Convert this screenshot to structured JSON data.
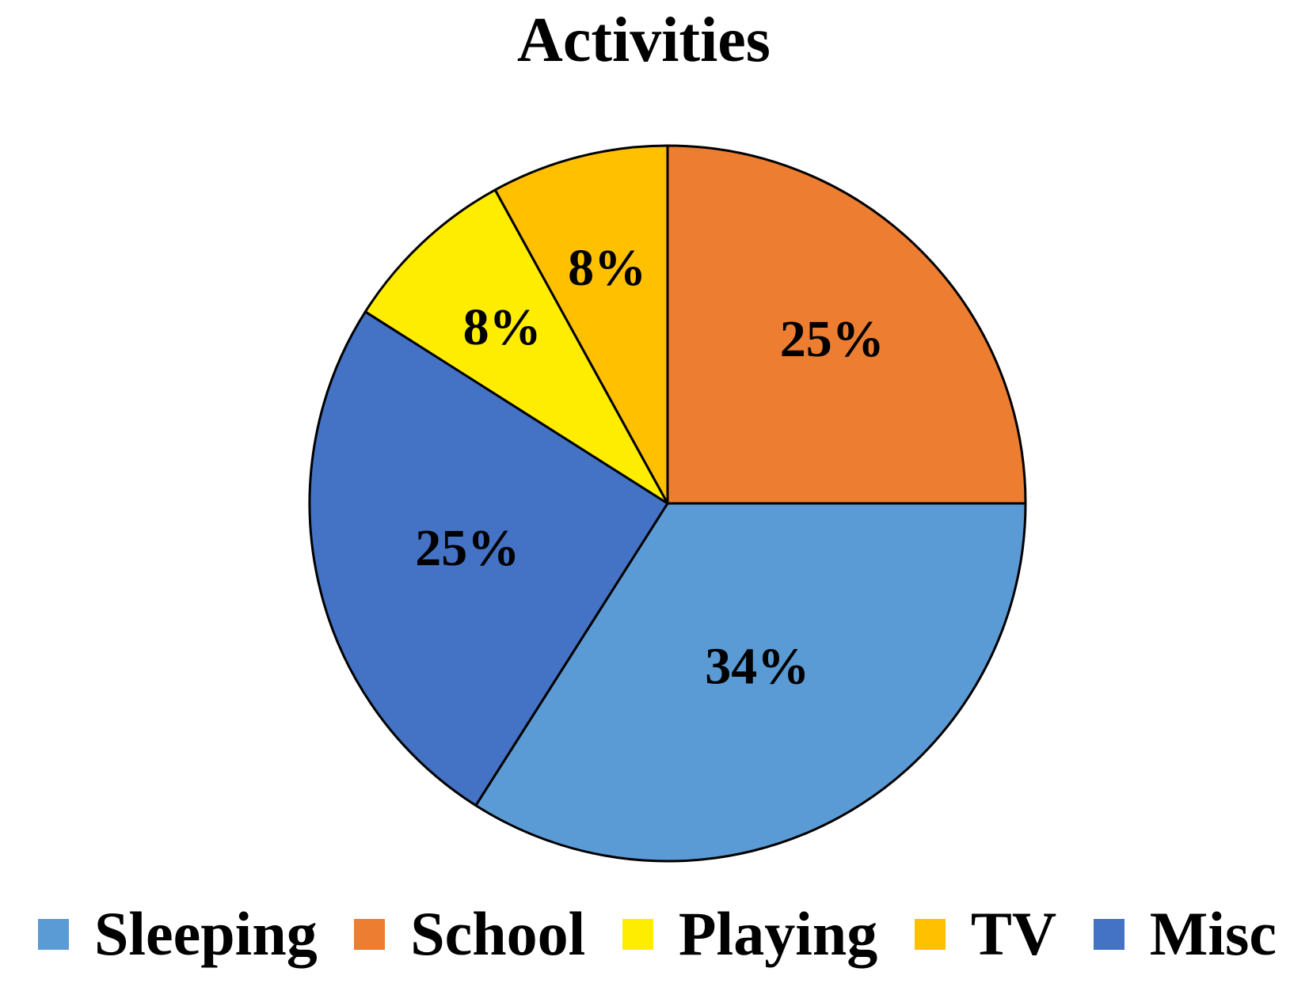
{
  "page": {
    "background_color": "#ffffff",
    "text_color": "#000000"
  },
  "chart_data": {
    "type": "pie",
    "title": "Activities",
    "legend_position": "bottom",
    "start_angle_deg": 0,
    "direction": "clockwise",
    "outline_color": "#000000",
    "slices": [
      {
        "label": "Sleeping",
        "value": 34,
        "pct_label": "34%",
        "color": "#5B9BD5"
      },
      {
        "label": "School",
        "value": 25,
        "pct_label": "25%",
        "color": "#ED7D31"
      },
      {
        "label": "Playing",
        "value": 8,
        "pct_label": "8%",
        "color": "#FFED00"
      },
      {
        "label": "TV",
        "value": 8,
        "pct_label": "8%",
        "color": "#FFC000"
      },
      {
        "label": "Misc",
        "value": 25,
        "pct_label": "25%",
        "color": "#4472C4"
      }
    ],
    "draw_order_clockwise_from_top": [
      "School",
      "Sleeping",
      "Misc",
      "Playing",
      "TV"
    ],
    "label_radius_fractions": {
      "School": 0.65,
      "Sleeping": 0.52,
      "Misc": 0.573,
      "Playing": 0.675,
      "TV": 0.68
    }
  }
}
